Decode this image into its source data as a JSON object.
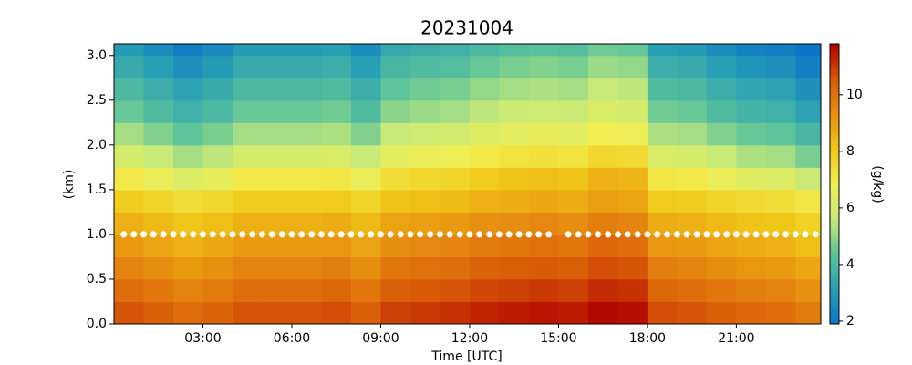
{
  "chart_data": {
    "type": "heatmap",
    "title": "20231004",
    "xlabel": "Time [UTC]",
    "ylabel": "(km)",
    "clabel": "(g/kg)",
    "x": [
      0,
      1,
      2,
      3,
      4,
      5,
      6,
      7,
      8,
      9,
      10,
      11,
      12,
      13,
      14,
      15,
      16,
      17,
      18,
      19,
      20,
      21,
      22,
      23
    ],
    "y": [
      0,
      0.25,
      0.5,
      0.75,
      1,
      1.25,
      1.5,
      1.75,
      2,
      2.25,
      2.5,
      2.75,
      3
    ],
    "values": [
      [
        10.6,
        10.4,
        10.1,
        10.3,
        10.6,
        10.6,
        10.6,
        10.7,
        10.4,
        10.9,
        11.0,
        11.1,
        11.3,
        11.4,
        11.5,
        11.4,
        11.7,
        11.6,
        10.7,
        10.6,
        10.4,
        10.2,
        10.1,
        9.8
      ],
      [
        10.1,
        9.9,
        9.6,
        9.8,
        10.1,
        10.1,
        10.1,
        10.2,
        9.9,
        10.4,
        10.5,
        10.6,
        10.8,
        10.9,
        11.0,
        10.9,
        11.2,
        11.1,
        10.2,
        10.1,
        9.9,
        9.7,
        9.6,
        9.3
      ],
      [
        9.6,
        9.4,
        9.1,
        9.3,
        9.6,
        9.6,
        9.6,
        9.7,
        9.4,
        9.9,
        10.0,
        10.1,
        10.3,
        10.4,
        10.5,
        10.4,
        10.7,
        10.6,
        9.7,
        9.6,
        9.4,
        9.2,
        9.1,
        8.8
      ],
      [
        9.1,
        8.9,
        8.6,
        8.8,
        9.1,
        9.1,
        9.1,
        9.2,
        8.9,
        9.4,
        9.5,
        9.6,
        9.8,
        9.9,
        10.0,
        9.9,
        10.2,
        10.1,
        9.2,
        9.1,
        8.9,
        8.7,
        8.6,
        8.3
      ],
      [
        8.6,
        8.4,
        8.1,
        8.3,
        8.6,
        8.6,
        8.6,
        8.7,
        8.4,
        8.9,
        9.0,
        9.1,
        9.3,
        9.4,
        9.5,
        9.4,
        9.7,
        9.6,
        8.7,
        8.6,
        8.4,
        8.2,
        8.1,
        7.8
      ],
      [
        7.9,
        7.7,
        7.4,
        7.6,
        7.9,
        7.9,
        7.9,
        8.0,
        7.7,
        8.2,
        8.3,
        8.4,
        8.6,
        8.7,
        8.8,
        8.7,
        9.0,
        8.9,
        8.0,
        7.9,
        7.7,
        7.5,
        7.4,
        7.1
      ],
      [
        7.0,
        6.6,
        6.2,
        6.5,
        7.0,
        7.0,
        7.0,
        7.1,
        6.6,
        7.4,
        7.6,
        7.7,
        8.0,
        8.2,
        8.3,
        8.2,
        8.6,
        8.5,
        7.1,
        7.0,
        6.6,
        6.3,
        6.2,
        5.7
      ],
      [
        6.0,
        5.6,
        5.2,
        5.5,
        6.0,
        6.0,
        6.0,
        6.1,
        5.6,
        6.4,
        6.6,
        6.7,
        7.0,
        7.2,
        7.3,
        7.2,
        7.6,
        7.5,
        6.1,
        6.0,
        5.6,
        5.3,
        5.2,
        4.7
      ],
      [
        5.2,
        4.8,
        4.4,
        4.7,
        5.2,
        5.2,
        5.2,
        5.3,
        4.8,
        5.6,
        5.8,
        5.9,
        6.2,
        6.4,
        6.5,
        6.4,
        6.8,
        6.7,
        5.3,
        5.2,
        4.8,
        4.5,
        4.4,
        3.9
      ],
      [
        4.5,
        4.1,
        3.7,
        4.0,
        4.5,
        4.5,
        4.5,
        4.6,
        4.1,
        4.9,
        5.1,
        5.2,
        5.5,
        5.7,
        5.8,
        5.7,
        6.1,
        6.0,
        4.6,
        4.5,
        4.1,
        3.8,
        3.7,
        3.2
      ],
      [
        4.0,
        3.6,
        3.2,
        3.5,
        4.0,
        4.0,
        4.0,
        4.1,
        3.6,
        4.4,
        4.6,
        4.7,
        5.0,
        5.2,
        5.3,
        5.2,
        5.6,
        5.5,
        4.1,
        4.0,
        3.6,
        3.3,
        3.2,
        2.7
      ],
      [
        3.5,
        3.1,
        2.7,
        3.0,
        3.5,
        3.5,
        3.5,
        3.6,
        3.1,
        3.9,
        4.1,
        4.2,
        4.5,
        4.7,
        4.8,
        4.7,
        5.1,
        5.0,
        3.6,
        3.5,
        3.1,
        2.8,
        2.7,
        2.2
      ],
      [
        3.0,
        2.6,
        2.2,
        2.5,
        3.0,
        3.0,
        3.0,
        3.1,
        2.6,
        3.4,
        3.6,
        3.7,
        4.0,
        4.2,
        4.3,
        4.2,
        4.6,
        4.5,
        3.1,
        3.0,
        2.6,
        2.3,
        2.2,
        1.9
      ]
    ],
    "markers": {
      "color": "#ffffff",
      "x": [
        0.33,
        0.67,
        1,
        1.33,
        1.67,
        2,
        2.33,
        2.67,
        3,
        3.33,
        3.67,
        4,
        4.33,
        4.67,
        5,
        5.33,
        5.67,
        6,
        6.33,
        6.67,
        7,
        7.33,
        7.67,
        8,
        8.33,
        8.67,
        9,
        9.33,
        9.67,
        10,
        10.33,
        10.67,
        11,
        11.33,
        11.67,
        12,
        12.33,
        12.67,
        13,
        13.33,
        13.67,
        14,
        14.33,
        14.67,
        15.33,
        15.67,
        16,
        16.33,
        16.67,
        17,
        17.33,
        17.67,
        18,
        18.33,
        18.67,
        19,
        19.33,
        19.67,
        20,
        20.33,
        20.67,
        21,
        21.33,
        21.67,
        22,
        22.33,
        22.67,
        23,
        23.33,
        23.67
      ],
      "values": [
        1,
        1,
        1,
        1,
        1,
        1,
        1,
        1,
        1,
        1,
        1,
        1,
        1,
        1,
        1,
        1,
        1,
        1,
        1,
        1,
        1,
        1,
        1,
        1,
        1,
        1,
        1,
        1,
        1,
        1,
        1,
        1,
        1,
        1,
        1,
        1,
        1,
        1,
        1,
        1,
        1,
        1,
        1,
        1,
        1,
        1,
        1,
        1,
        1,
        1,
        1,
        1,
        1,
        1,
        1,
        1,
        1,
        1,
        1,
        1,
        1,
        1,
        1,
        1,
        1,
        1,
        1,
        1,
        1,
        1
      ]
    },
    "xlim": [
      0,
      23.85
    ],
    "ylim": [
      0,
      3.13
    ],
    "xticks": [
      {
        "value": 3,
        "label": "03:00"
      },
      {
        "value": 6,
        "label": "06:00"
      },
      {
        "value": 9,
        "label": "09:00"
      },
      {
        "value": 12,
        "label": "12:00"
      },
      {
        "value": 15,
        "label": "15:00"
      },
      {
        "value": 18,
        "label": "18:00"
      },
      {
        "value": 21,
        "label": "21:00"
      }
    ],
    "yticks": [
      {
        "value": 0,
        "label": "0.0"
      },
      0.5,
      {
        "value": 1,
        "label": "1.0"
      },
      1.5,
      {
        "value": 2,
        "label": "2.0"
      },
      2.5,
      {
        "value": 3,
        "label": "3.0"
      }
    ],
    "clim": [
      1.9,
      11.8
    ],
    "cticks": [
      2,
      4,
      6,
      8,
      10
    ],
    "colormap": [
      "#0a74c8",
      "#2aa0b4",
      "#5cc39a",
      "#c8ea78",
      "#f2ee50",
      "#f0c818",
      "#e89010",
      "#d85808",
      "#b00000"
    ]
  }
}
